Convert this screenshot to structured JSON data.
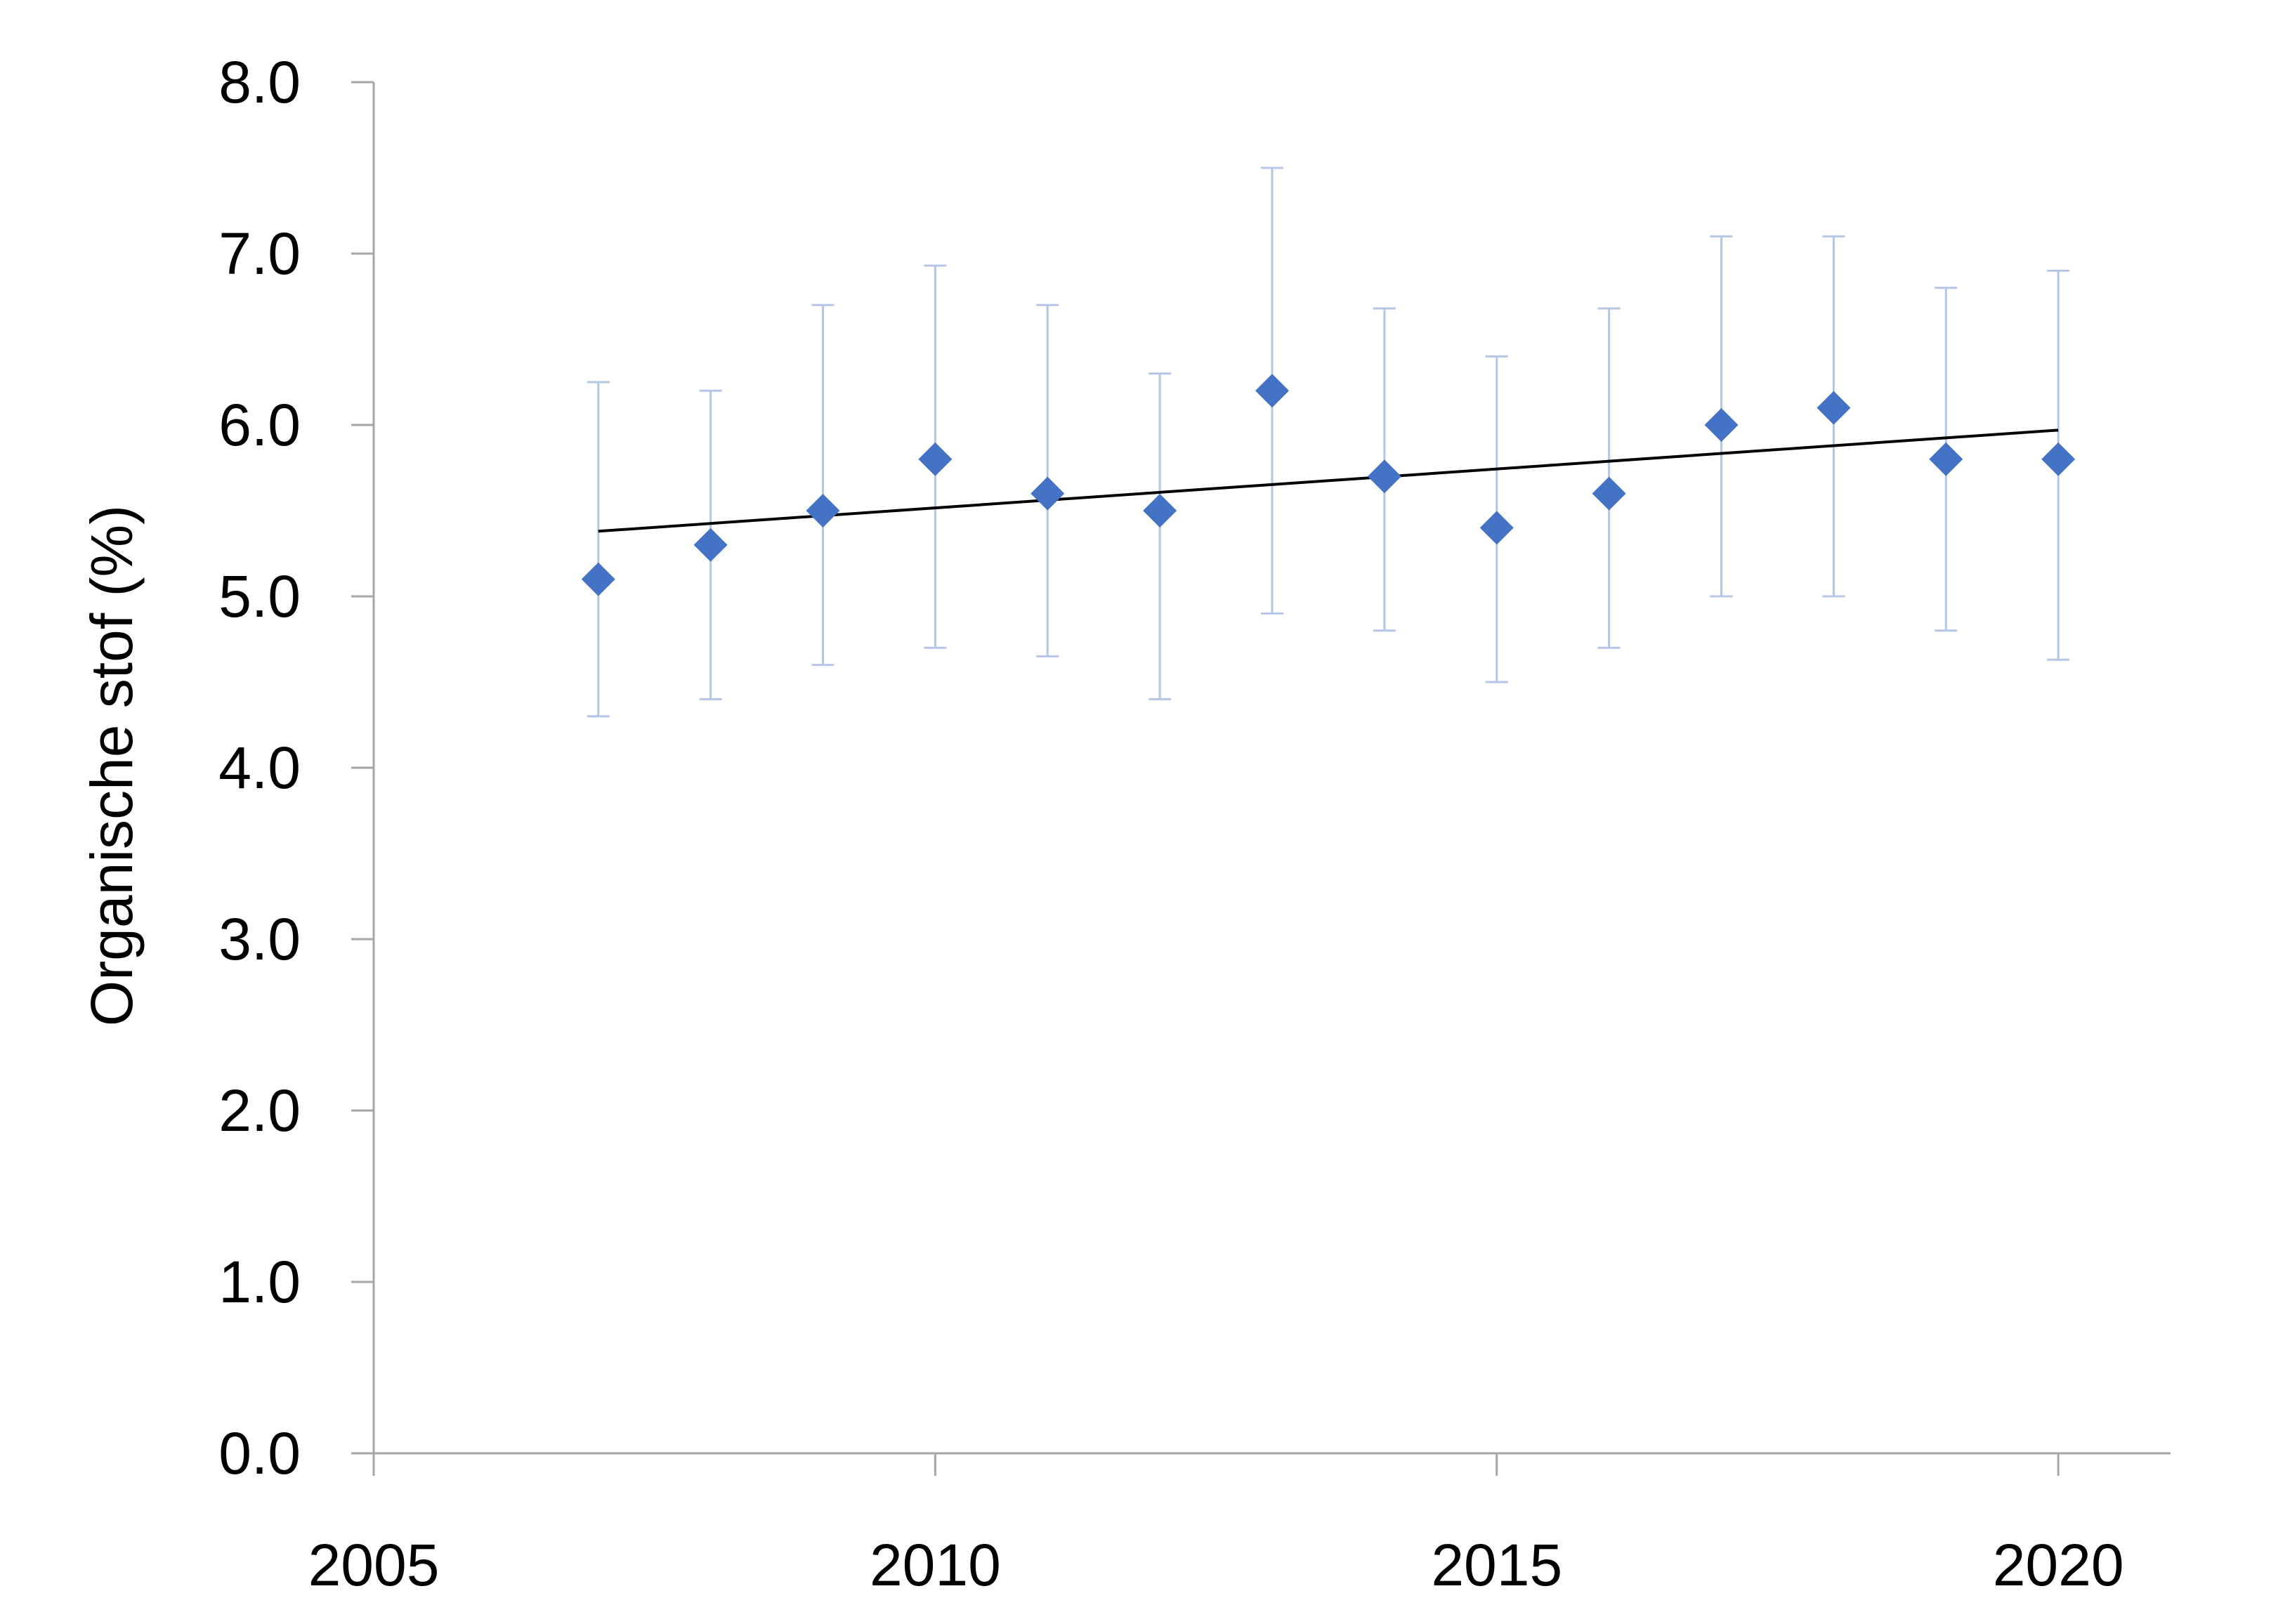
{
  "chart_data": {
    "type": "scatter",
    "ylabel": "Organische stof (%)",
    "xlabel": "",
    "xlim": [
      2005,
      2021
    ],
    "ylim": [
      0,
      8
    ],
    "x_ticks": [
      2005,
      2010,
      2015,
      2020
    ],
    "x_tick_labels": [
      "2005",
      "2010",
      "2015",
      "2020"
    ],
    "y_ticks": [
      0,
      1,
      2,
      3,
      4,
      5,
      6,
      7,
      8
    ],
    "y_tick_labels": [
      "0.0",
      "1.0",
      "2.0",
      "3.0",
      "4.0",
      "5.0",
      "6.0",
      "7.0",
      "8.0"
    ],
    "grid": false,
    "legend": "none",
    "series": [
      {
        "marker": "diamond",
        "color": "#4472C4",
        "error_bar_color": "#B4C7E7",
        "points": [
          {
            "x": 2007,
            "y": 5.1,
            "y_low": 4.3,
            "y_high": 6.25
          },
          {
            "x": 2008,
            "y": 5.3,
            "y_low": 4.4,
            "y_high": 6.2
          },
          {
            "x": 2009,
            "y": 5.5,
            "y_low": 4.6,
            "y_high": 6.7
          },
          {
            "x": 2010,
            "y": 5.8,
            "y_low": 4.7,
            "y_high": 6.93
          },
          {
            "x": 2011,
            "y": 5.6,
            "y_low": 4.65,
            "y_high": 6.7
          },
          {
            "x": 2012,
            "y": 5.5,
            "y_low": 4.4,
            "y_high": 6.3
          },
          {
            "x": 2013,
            "y": 6.2,
            "y_low": 4.9,
            "y_high": 7.5
          },
          {
            "x": 2014,
            "y": 5.7,
            "y_low": 4.8,
            "y_high": 6.68
          },
          {
            "x": 2015,
            "y": 5.4,
            "y_low": 4.5,
            "y_high": 6.4
          },
          {
            "x": 2016,
            "y": 5.6,
            "y_low": 4.7,
            "y_high": 6.68
          },
          {
            "x": 2017,
            "y": 6.0,
            "y_low": 5.0,
            "y_high": 7.1
          },
          {
            "x": 2018,
            "y": 6.1,
            "y_low": 5.0,
            "y_high": 7.1
          },
          {
            "x": 2019,
            "y": 5.8,
            "y_low": 4.8,
            "y_high": 6.8
          },
          {
            "x": 2020,
            "y": 5.8,
            "y_low": 4.63,
            "y_high": 6.9
          }
        ]
      }
    ],
    "trendline": {
      "type": "linear",
      "color": "#000000",
      "x": [
        2007,
        2020
      ],
      "y": [
        5.38,
        5.97
      ]
    },
    "colors": {
      "axis": "#A6A6A6",
      "text": "#000000"
    }
  }
}
